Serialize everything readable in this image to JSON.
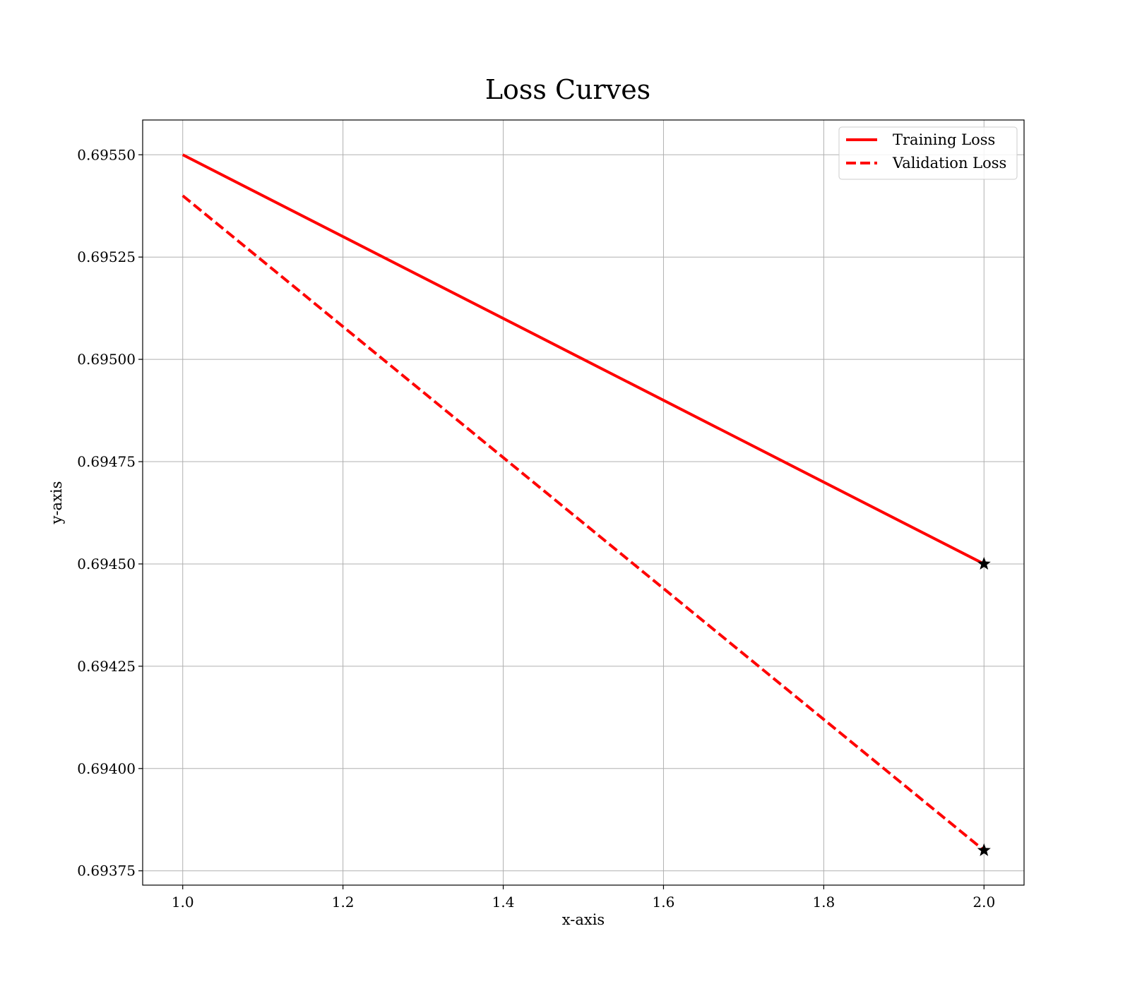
{
  "chart_data": {
    "type": "line",
    "title": "Loss Curves",
    "xlabel": "x-axis",
    "ylabel": "y-axis",
    "xlim": [
      0.95,
      2.05
    ],
    "ylim": [
      0.693715,
      0.695585
    ],
    "x_ticks": [
      1.0,
      1.2,
      1.4,
      1.6,
      1.8,
      2.0
    ],
    "x_tick_labels": [
      "1.0",
      "1.2",
      "1.4",
      "1.6",
      "1.8",
      "2.0"
    ],
    "y_ticks": [
      0.69375,
      0.694,
      0.69425,
      0.6945,
      0.69475,
      0.695,
      0.69525,
      0.6955
    ],
    "y_tick_labels": [
      "0.69375",
      "0.69400",
      "0.69425",
      "0.69450",
      "0.69475",
      "0.69500",
      "0.69525",
      "0.69550"
    ],
    "grid": true,
    "legend_position": "top-right",
    "series": [
      {
        "name": "Training Loss",
        "x": [
          1,
          2
        ],
        "y": [
          0.6955,
          0.6945
        ],
        "color": "#ff0000",
        "line_style": "solid",
        "end_marker": "star",
        "end_marker_color": "#000000"
      },
      {
        "name": "Validation Loss",
        "x": [
          1,
          2
        ],
        "y": [
          0.6954,
          0.6938
        ],
        "color": "#ff0000",
        "line_style": "dashed",
        "end_marker": "star",
        "end_marker_color": "#000000"
      }
    ]
  }
}
